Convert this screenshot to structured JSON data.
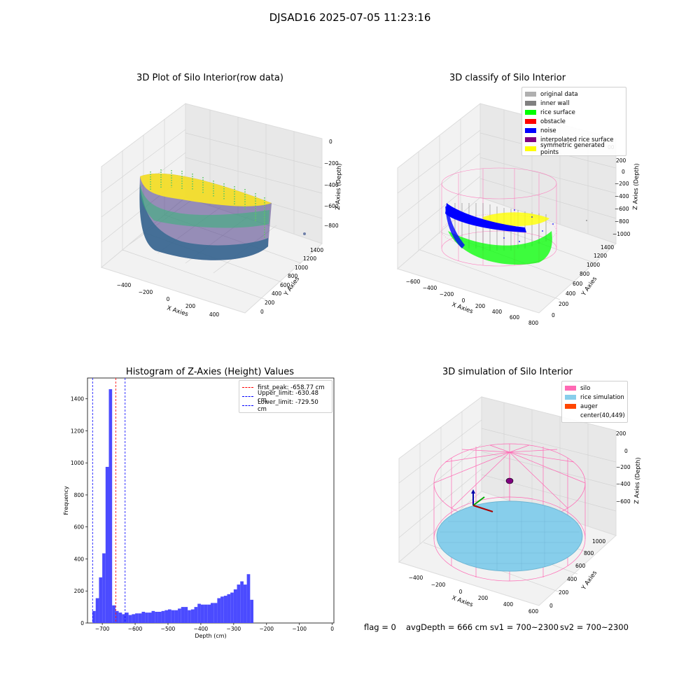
{
  "figure_title": "DJSAD16 2025-07-05 11:23:16",
  "footer": {
    "flag": "flag = 0",
    "avg_depth": "avgDepth = 666 cm",
    "sv1": "sv1 = 700~2300",
    "sv2": "sv2 = 700~2300"
  },
  "colors": {
    "original_data": "#b0b0b0",
    "inner_wall": "#808080",
    "rice_surface": "#00ff00",
    "obstacle": "#ff0000",
    "noise": "#0000ff",
    "interpolated_rice_surface": "#800080",
    "symmetric_generated_points": "#ffff00",
    "silo": "#ff69b4",
    "rice_simulation": "#87ceeb",
    "auger": "#ff4500",
    "hist_bar": "#4b4bff"
  },
  "chart_data": [
    {
      "type": "scatter",
      "title": "3D Plot of Silo Interior(row data)",
      "xlabel": "X Axies",
      "ylabel": "Y Axies",
      "zlabel": "Z Axies (Depth)",
      "x_ticks": [
        "−400",
        "−200",
        "0",
        "200",
        "400"
      ],
      "y_ticks": [
        "0",
        "200",
        "400",
        "600",
        "800",
        "1000",
        "1200",
        "1400"
      ],
      "z_ticks": [
        "0",
        "−200",
        "−400",
        "−600",
        "−800"
      ],
      "colormap": "viridis"
    },
    {
      "type": "scatter",
      "title": "3D classify of Silo Interior",
      "xlabel": "X Axies",
      "ylabel": "Y Axies",
      "zlabel": "Z Axies (Depth)",
      "x_ticks": [
        "−600",
        "−400",
        "−200",
        "0",
        "200",
        "400",
        "600",
        "800"
      ],
      "y_ticks": [
        "0",
        "200",
        "400",
        "600",
        "800",
        "1000",
        "1200",
        "1400"
      ],
      "z_ticks": [
        "200",
        "0",
        "−200",
        "−400",
        "−600",
        "−800",
        "−1000"
      ],
      "z_tick_partial": "00",
      "legend": [
        {
          "label": "original data",
          "color_key": "original_data"
        },
        {
          "label": "inner wall",
          "color_key": "inner_wall"
        },
        {
          "label": "rice surface",
          "color_key": "rice_surface"
        },
        {
          "label": "obstacle",
          "color_key": "obstacle"
        },
        {
          "label": "noise",
          "color_key": "noise"
        },
        {
          "label": "interpolated rice surface",
          "color_key": "interpolated_rice_surface"
        },
        {
          "label": "symmetric generated points",
          "color_key": "symmetric_generated_points"
        }
      ]
    },
    {
      "type": "bar",
      "title": "Histogram of Z-Axies (Height) Values",
      "xlabel": "Depth (cm)",
      "ylabel": "Frequency",
      "xlim": [
        -745,
        5
      ],
      "ylim": [
        0,
        1530
      ],
      "x_ticks": [
        -700,
        -600,
        -500,
        -400,
        -300,
        -200,
        -100,
        0
      ],
      "y_ticks": [
        0,
        200,
        400,
        600,
        800,
        1000,
        1200,
        1400
      ],
      "bin_start": -730,
      "bin_width": 10,
      "values": [
        75,
        155,
        285,
        435,
        975,
        1460,
        110,
        75,
        65,
        55,
        65,
        50,
        55,
        60,
        60,
        70,
        65,
        65,
        75,
        70,
        70,
        75,
        80,
        85,
        80,
        80,
        90,
        100,
        100,
        80,
        85,
        100,
        120,
        115,
        115,
        115,
        125,
        125,
        155,
        165,
        170,
        180,
        190,
        210,
        240,
        260,
        240,
        305,
        145
      ],
      "vlines": [
        {
          "label": "first_peak: -658.77 cm",
          "x": -658.77,
          "color": "#ff0000"
        },
        {
          "label": "Upper_limit: -630.48 cm",
          "x": -630.48,
          "color": "#0000ff"
        },
        {
          "label": "Lower_limit: -729.50 cm",
          "x": -729.5,
          "color": "#0000ff"
        }
      ]
    },
    {
      "type": "scatter",
      "title": "3D simulation of Silo Interior",
      "xlabel": "X Axies",
      "ylabel": "Y Axies",
      "zlabel": "Z Axies (Depth)",
      "x_ticks": [
        "−400",
        "−200",
        "0",
        "200",
        "400",
        "600"
      ],
      "y_ticks": [
        "0",
        "200",
        "400",
        "600",
        "800",
        "1000"
      ],
      "z_ticks": [
        "200",
        "0",
        "−200",
        "−400",
        "−600"
      ],
      "legend": [
        {
          "label": "silo",
          "color_key": "silo"
        },
        {
          "label": "rice simulation",
          "color_key": "rice_simulation"
        },
        {
          "label": "auger",
          "color_key": "auger"
        },
        {
          "label": "center(40,449)",
          "color_key": ""
        }
      ]
    }
  ]
}
